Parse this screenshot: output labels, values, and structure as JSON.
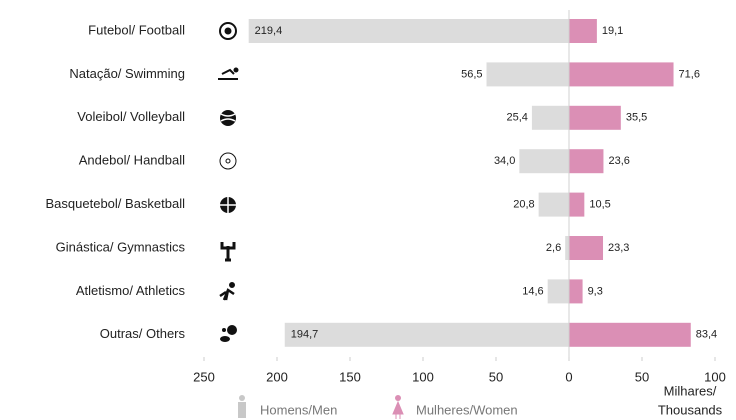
{
  "chart_data": {
    "type": "butterfly",
    "categories": [
      "Futebol/ Football",
      "Natação/ Swimming",
      "Voleibol/ Volleyball",
      "Andebol/ Handball",
      "Basquetebol/ Basketball",
      "Ginástica/ Gymnastics",
      "Atletismo/ Athletics",
      "Outras/ Others"
    ],
    "series": [
      {
        "name": "Homens/Men",
        "color": "#dcdcdc",
        "side": "left",
        "values": [
          219.4,
          56.5,
          25.4,
          34.0,
          20.8,
          2.6,
          14.6,
          194.7
        ],
        "value_labels": [
          "219,4",
          "56,5",
          "25,4",
          "34,0",
          "20,8",
          "2,6",
          "14,6",
          "194,7"
        ]
      },
      {
        "name": "Mulheres/Women",
        "color": "#db8fb5",
        "side": "right",
        "values": [
          19.1,
          71.6,
          35.5,
          23.6,
          10.5,
          23.3,
          9.3,
          83.4
        ],
        "value_labels": [
          "19,1",
          "71,6",
          "35,5",
          "23,6",
          "10,5",
          "23,3",
          "9,3",
          "83,4"
        ]
      }
    ],
    "xlim": [
      -250,
      100
    ],
    "xticks": [
      {
        "value": -250,
        "label": "250"
      },
      {
        "value": -200,
        "label": "200"
      },
      {
        "value": -150,
        "label": "150"
      },
      {
        "value": -100,
        "label": "100"
      },
      {
        "value": -50,
        "label": "50"
      },
      0,
      50,
      100
    ],
    "x_label_lines": [
      "Milhares/",
      "Thousands"
    ]
  }
}
